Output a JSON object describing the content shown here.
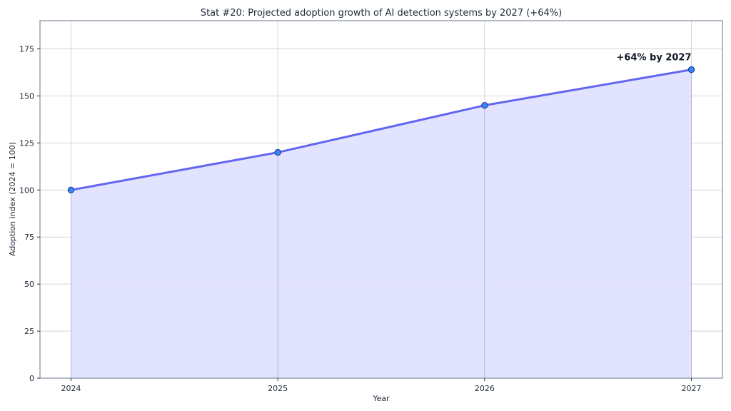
{
  "chart_data": {
    "type": "area",
    "title": "Stat #20: Projected adoption growth of AI detection systems by 2027 (+64%)",
    "xlabel": "Year",
    "ylabel": "Adoption index (2024 = 100)",
    "x": [
      "2024",
      "2025",
      "2026",
      "2027"
    ],
    "values": [
      100,
      120,
      145,
      164
    ],
    "xlim": [
      2023.85,
      2027.15
    ],
    "ylim": [
      0,
      190
    ],
    "yticks": [
      0,
      25,
      50,
      75,
      100,
      125,
      150,
      175
    ],
    "grid": true,
    "annotation": {
      "text": "+64% by 2027",
      "x": "2027",
      "y": 164
    },
    "colors": {
      "line": "#6366f1",
      "fill": "#e0e1ff",
      "marker": "#3b82f6",
      "marker_edge": "#1e3a8a",
      "grid": "#cccccc",
      "frame": "#64748b"
    }
  }
}
